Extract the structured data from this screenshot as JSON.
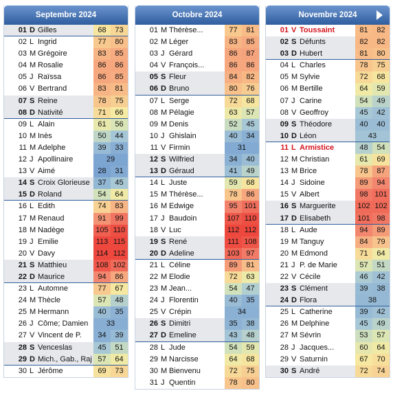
{
  "months": [
    {
      "title": "Septembre 2024",
      "days": [
        {
          "d": "01",
          "w": "D",
          "n": "Gilles",
          "c": [
            68,
            73
          ]
        },
        {
          "d": "02",
          "w": "L",
          "n": "Ingrid",
          "c": [
            77,
            80
          ]
        },
        {
          "d": "03",
          "w": "M",
          "n": "Grégoire",
          "c": [
            83,
            85
          ]
        },
        {
          "d": "04",
          "w": "M",
          "n": "Rosalie",
          "c": [
            86,
            86
          ]
        },
        {
          "d": "05",
          "w": "J",
          "n": "Raïssa",
          "c": [
            86,
            85
          ]
        },
        {
          "d": "06",
          "w": "V",
          "n": "Bertrand",
          "c": [
            83,
            81
          ]
        },
        {
          "d": "07",
          "w": "S",
          "n": "Reine",
          "c": [
            78,
            75
          ]
        },
        {
          "d": "08",
          "w": "D",
          "n": "Nativité",
          "c": [
            71,
            66
          ]
        },
        {
          "d": "09",
          "w": "L",
          "n": "Alain",
          "c": [
            61,
            56
          ]
        },
        {
          "d": "10",
          "w": "M",
          "n": "Inès",
          "c": [
            50,
            44
          ]
        },
        {
          "d": "11",
          "w": "M",
          "n": "Adelphe",
          "c": [
            39,
            33
          ]
        },
        {
          "d": "12",
          "w": "J",
          "n": "Apollinaire",
          "c": [
            29
          ]
        },
        {
          "d": "13",
          "w": "V",
          "n": "Aimé",
          "c": [
            28,
            31
          ]
        },
        {
          "d": "14",
          "w": "S",
          "n": "Croix Glorieuse",
          "c": [
            37,
            45
          ]
        },
        {
          "d": "15",
          "w": "D",
          "n": "Roland",
          "c": [
            54,
            64
          ]
        },
        {
          "d": "16",
          "w": "L",
          "n": "Edith",
          "c": [
            74,
            83
          ]
        },
        {
          "d": "17",
          "w": "M",
          "n": "Renaud",
          "c": [
            91,
            99
          ]
        },
        {
          "d": "18",
          "w": "M",
          "n": "Nadège",
          "c": [
            105,
            110
          ]
        },
        {
          "d": "19",
          "w": "J",
          "n": "Emilie",
          "c": [
            113,
            115
          ]
        },
        {
          "d": "20",
          "w": "V",
          "n": "Davy",
          "c": [
            114,
            112
          ]
        },
        {
          "d": "21",
          "w": "S",
          "n": "Matthieu",
          "c": [
            108,
            102
          ]
        },
        {
          "d": "22",
          "w": "D",
          "n": "Maurice",
          "c": [
            94,
            86
          ]
        },
        {
          "d": "23",
          "w": "L",
          "n": "Automne",
          "c": [
            77,
            67
          ]
        },
        {
          "d": "24",
          "w": "M",
          "n": "Thècle",
          "c": [
            57,
            48
          ]
        },
        {
          "d": "25",
          "w": "M",
          "n": "Hermann",
          "c": [
            40,
            35
          ]
        },
        {
          "d": "26",
          "w": "J",
          "n": "Côme; Damien",
          "c": [
            33
          ]
        },
        {
          "d": "27",
          "w": "V",
          "n": "Vincent de P.",
          "c": [
            34,
            39
          ]
        },
        {
          "d": "28",
          "w": "S",
          "n": "Venceslas",
          "c": [
            45,
            51
          ]
        },
        {
          "d": "29",
          "w": "D",
          "n": "Mich., Gab., Raj",
          "c": [
            57,
            64
          ]
        },
        {
          "d": "30",
          "w": "L",
          "n": "Jérôme",
          "c": [
            69,
            73
          ]
        }
      ]
    },
    {
      "title": "Octobre 2024",
      "days": [
        {
          "d": "01",
          "w": "M",
          "n": "Thérèse...",
          "c": [
            77,
            81
          ]
        },
        {
          "d": "02",
          "w": "M",
          "n": "Léger",
          "c": [
            83,
            85
          ]
        },
        {
          "d": "03",
          "w": "J",
          "n": "Gérard",
          "c": [
            86,
            87
          ]
        },
        {
          "d": "04",
          "w": "V",
          "n": "François...",
          "c": [
            86,
            86
          ]
        },
        {
          "d": "05",
          "w": "S",
          "n": "Fleur",
          "c": [
            84,
            82
          ]
        },
        {
          "d": "06",
          "w": "D",
          "n": "Bruno",
          "c": [
            80,
            76
          ]
        },
        {
          "d": "07",
          "w": "L",
          "n": "Serge",
          "c": [
            72,
            68
          ]
        },
        {
          "d": "08",
          "w": "M",
          "n": "Pélagie",
          "c": [
            63,
            57
          ]
        },
        {
          "d": "09",
          "w": "M",
          "n": "Denis",
          "c": [
            52,
            45
          ]
        },
        {
          "d": "10",
          "w": "J",
          "n": "Ghislain",
          "c": [
            40,
            34
          ]
        },
        {
          "d": "11",
          "w": "V",
          "n": "Firmin",
          "c": [
            31
          ]
        },
        {
          "d": "12",
          "w": "S",
          "n": "Wilfried",
          "c": [
            34,
            40
          ]
        },
        {
          "d": "13",
          "w": "D",
          "n": "Géraud",
          "c": [
            41,
            49
          ]
        },
        {
          "d": "14",
          "w": "L",
          "n": "Juste",
          "c": [
            59,
            68
          ]
        },
        {
          "d": "15",
          "w": "M",
          "n": "Thérèse...",
          "c": [
            78,
            86
          ]
        },
        {
          "d": "16",
          "w": "M",
          "n": "Edwige",
          "c": [
            95,
            101
          ]
        },
        {
          "d": "17",
          "w": "J",
          "n": "Baudoin",
          "c": [
            107,
            110
          ]
        },
        {
          "d": "18",
          "w": "V",
          "n": "Luc",
          "c": [
            112,
            112
          ]
        },
        {
          "d": "19",
          "w": "S",
          "n": "René",
          "c": [
            111,
            108
          ]
        },
        {
          "d": "20",
          "w": "D",
          "n": "Adeline",
          "c": [
            103,
            97
          ]
        },
        {
          "d": "21",
          "w": "L",
          "n": "Céline",
          "c": [
            89,
            81
          ]
        },
        {
          "d": "22",
          "w": "M",
          "n": "Elodie",
          "c": [
            72,
            63
          ]
        },
        {
          "d": "23",
          "w": "M",
          "n": "Jean...",
          "c": [
            54,
            47
          ]
        },
        {
          "d": "24",
          "w": "J",
          "n": "Florentin",
          "c": [
            40,
            35
          ]
        },
        {
          "d": "25",
          "w": "V",
          "n": "Crépin",
          "c": [
            34
          ]
        },
        {
          "d": "26",
          "w": "S",
          "n": "Dimitri",
          "c": [
            35,
            38
          ]
        },
        {
          "d": "27",
          "w": "D",
          "n": "Emeline",
          "c": [
            43,
            48
          ]
        },
        {
          "d": "28",
          "w": "L",
          "n": "Jude",
          "c": [
            54,
            59
          ]
        },
        {
          "d": "29",
          "w": "M",
          "n": "Narcisse",
          "c": [
            64,
            68
          ]
        },
        {
          "d": "30",
          "w": "M",
          "n": "Bienvenu",
          "c": [
            72,
            75
          ]
        },
        {
          "d": "31",
          "w": "J",
          "n": "Quentin",
          "c": [
            78,
            80
          ]
        }
      ]
    },
    {
      "title": "Novembre 2024",
      "days": [
        {
          "d": "01",
          "w": "V",
          "n": "Toussaint",
          "c": [
            81,
            82
          ],
          "h": true
        },
        {
          "d": "02",
          "w": "S",
          "n": "Défunts",
          "c": [
            82,
            82
          ]
        },
        {
          "d": "03",
          "w": "D",
          "n": "Hubert",
          "c": [
            81,
            80
          ]
        },
        {
          "d": "04",
          "w": "L",
          "n": "Charles",
          "c": [
            78,
            75
          ]
        },
        {
          "d": "05",
          "w": "M",
          "n": "Sylvie",
          "c": [
            72,
            68
          ]
        },
        {
          "d": "06",
          "w": "M",
          "n": "Bertille",
          "c": [
            64,
            59
          ]
        },
        {
          "d": "07",
          "w": "J",
          "n": "Carine",
          "c": [
            54,
            49
          ]
        },
        {
          "d": "08",
          "w": "V",
          "n": "Geoffroy",
          "c": [
            45,
            42
          ]
        },
        {
          "d": "09",
          "w": "S",
          "n": "Théodore",
          "c": [
            40,
            40
          ]
        },
        {
          "d": "10",
          "w": "D",
          "n": "Léon",
          "c": [
            43
          ]
        },
        {
          "d": "11",
          "w": "L",
          "n": "Armistice",
          "c": [
            48,
            54
          ],
          "h": true
        },
        {
          "d": "12",
          "w": "M",
          "n": "Christian",
          "c": [
            61,
            69
          ]
        },
        {
          "d": "13",
          "w": "M",
          "n": "Brice",
          "c": [
            78,
            87
          ]
        },
        {
          "d": "14",
          "w": "J",
          "n": "Sidoine",
          "c": [
            89,
            94
          ]
        },
        {
          "d": "15",
          "w": "V",
          "n": "Albert",
          "c": [
            98,
            101
          ]
        },
        {
          "d": "16",
          "w": "S",
          "n": "Marguerite",
          "c": [
            102,
            102
          ]
        },
        {
          "d": "17",
          "w": "D",
          "n": "Elisabeth",
          "c": [
            101,
            98
          ]
        },
        {
          "d": "18",
          "w": "L",
          "n": "Aude",
          "c": [
            94,
            89
          ]
        },
        {
          "d": "19",
          "w": "M",
          "n": "Tanguy",
          "c": [
            84,
            79
          ]
        },
        {
          "d": "20",
          "w": "M",
          "n": "Edmond",
          "c": [
            71,
            64
          ]
        },
        {
          "d": "21",
          "w": "J",
          "n": "P. de Marie",
          "c": [
            57,
            51
          ]
        },
        {
          "d": "22",
          "w": "V",
          "n": "Cécile",
          "c": [
            46,
            42
          ]
        },
        {
          "d": "23",
          "w": "S",
          "n": "Clément",
          "c": [
            39,
            38
          ]
        },
        {
          "d": "24",
          "w": "D",
          "n": "Flora",
          "c": [
            38
          ]
        },
        {
          "d": "25",
          "w": "L",
          "n": "Catherine",
          "c": [
            39,
            42
          ]
        },
        {
          "d": "26",
          "w": "M",
          "n": "Delphine",
          "c": [
            45,
            49
          ]
        },
        {
          "d": "27",
          "w": "M",
          "n": "Sévrin",
          "c": [
            53,
            57
          ]
        },
        {
          "d": "28",
          "w": "J",
          "n": "Jacques...",
          "c": [
            60,
            64
          ]
        },
        {
          "d": "29",
          "w": "V",
          "n": "Saturnin",
          "c": [
            67,
            70
          ]
        },
        {
          "d": "30",
          "w": "S",
          "n": "André",
          "c": [
            72,
            74
          ]
        }
      ]
    }
  ]
}
